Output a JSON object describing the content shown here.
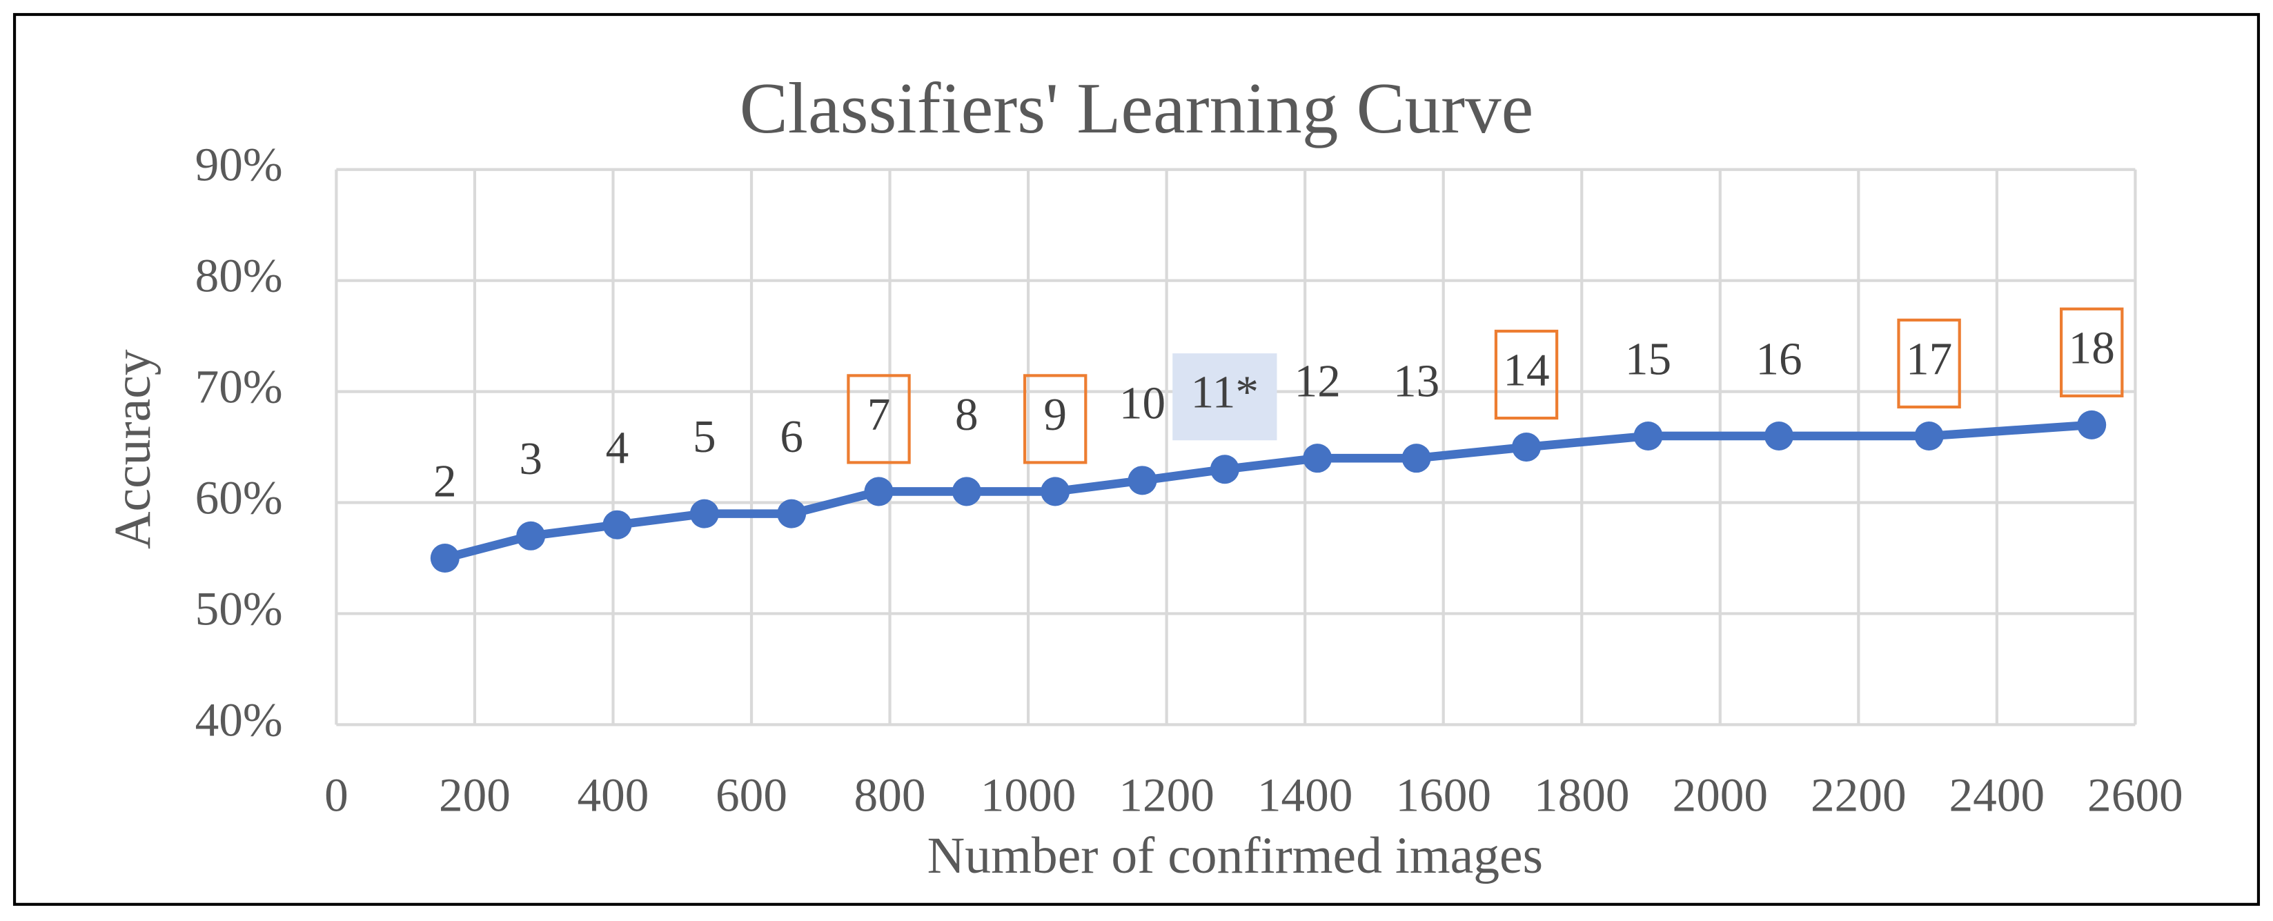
{
  "chart_data": {
    "type": "line",
    "title": "Classifiers' Learning Curve",
    "x_label": "Number of confirmed images",
    "y_label": "Accuracy",
    "x": [
      157,
      281,
      406,
      532,
      658,
      784,
      911,
      1039,
      1165,
      1284,
      1418,
      1561,
      1720,
      1896,
      2085,
      2302,
      2537
    ],
    "series": [
      {
        "color": "#4472c4",
        "values": [
          55,
          57,
          58,
          59,
          59,
          61,
          61,
          61,
          62,
          63,
          64,
          64,
          65,
          66,
          66,
          66,
          67
        ]
      }
    ],
    "point_labels": [
      "2",
      "3",
      "4",
      "5",
      "6",
      "7",
      "8",
      "9",
      "10",
      "11*",
      "12",
      "13",
      "14",
      "15",
      "16",
      "17",
      "18"
    ],
    "label_frames": [
      null,
      null,
      null,
      null,
      null,
      {
        "stroke": "#ed7d31"
      },
      null,
      {
        "stroke": "#ed7d31"
      },
      null,
      {
        "fill": "#dae3f3"
      },
      null,
      null,
      {
        "stroke": "#ed7d31"
      },
      null,
      null,
      {
        "stroke": "#ed7d31"
      },
      {
        "stroke": "#ed7d31"
      }
    ],
    "xlim": [
      0,
      2600
    ],
    "xticks": [
      0,
      200,
      400,
      600,
      800,
      1000,
      1200,
      1400,
      1600,
      1800,
      2000,
      2200,
      2400,
      2600
    ],
    "ylim": [
      40,
      90
    ],
    "yticks": [
      {
        "value": 40,
        "label": "40%"
      },
      {
        "value": 50,
        "label": "50%"
      },
      {
        "value": 60,
        "label": "60%"
      },
      {
        "value": 70,
        "label": "70%"
      },
      {
        "value": 80,
        "label": "80%"
      },
      {
        "value": 90,
        "label": "90%"
      }
    ],
    "grid": true
  }
}
